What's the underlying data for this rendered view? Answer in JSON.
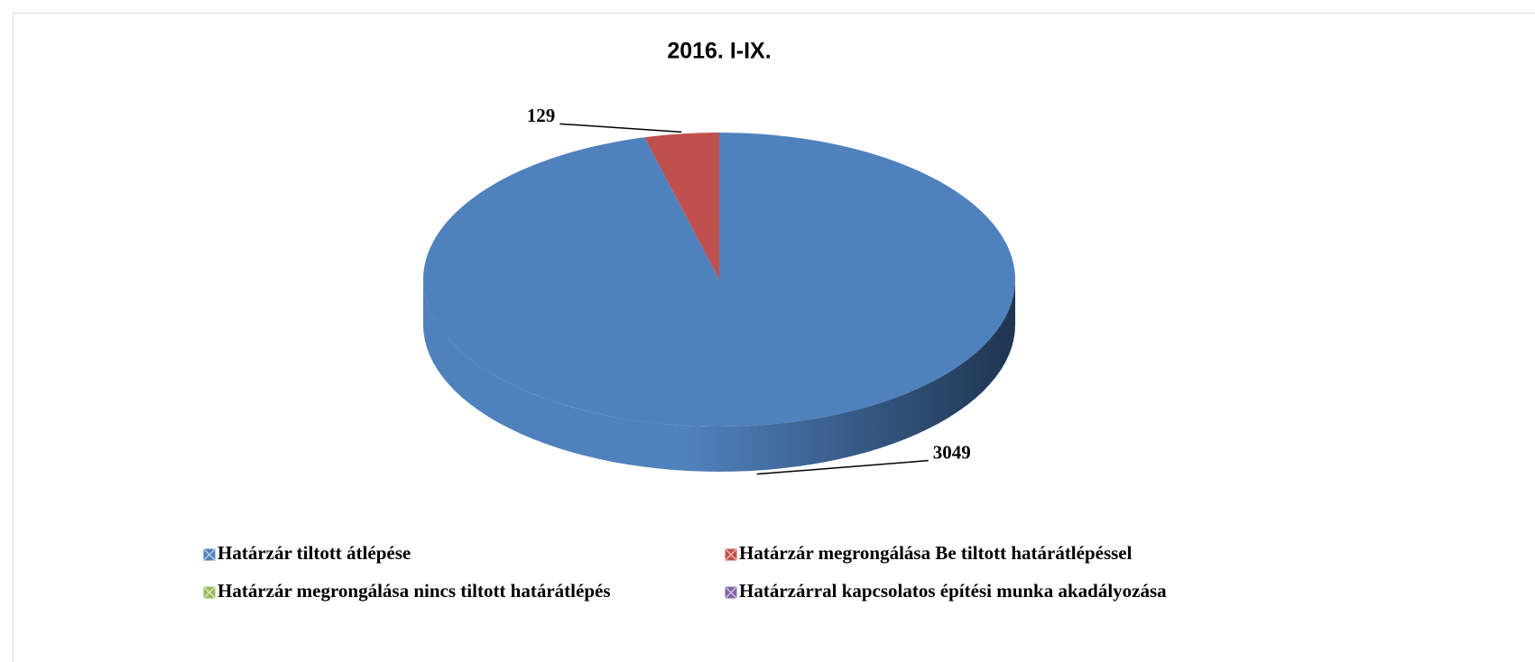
{
  "chart_data": {
    "type": "pie3d",
    "title": "2016. I-IX.",
    "categories": [
      "Határzár tiltott átlépése",
      "Határzár megrongálása Be tiltott határátlépéssel",
      "Határzár megrongálása nincs tiltott határátlépés",
      "Határzárral kapcsolatos építési munka akadályozása"
    ],
    "values": [
      3049,
      129,
      0,
      0
    ],
    "colors": [
      "#4f81bd",
      "#c0504d",
      "#9bbb59",
      "#8064a2"
    ],
    "legend": "bottom"
  }
}
